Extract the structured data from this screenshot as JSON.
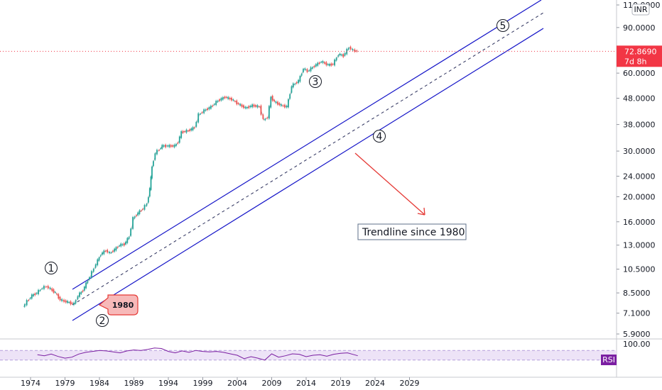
{
  "chart_data": {
    "type": "line",
    "currency": "INR",
    "x_ticks": [
      "1974",
      "1979",
      "1984",
      "1989",
      "1994",
      "1999",
      "2004",
      "2009",
      "2014",
      "2019",
      "2024",
      "2029"
    ],
    "y_scale": "log",
    "y_ticks": [
      "110.0000",
      "90.0000",
      "60.0000",
      "48.0000",
      "38.0000",
      "30.0000",
      "24.0000",
      "20.0000",
      "16.0000",
      "13.0000",
      "10.5000",
      "8.5000",
      "7.1000",
      "5.9000"
    ],
    "y_tick_values": [
      110,
      90,
      60,
      48,
      38,
      30,
      24,
      20,
      16,
      13,
      10.5,
      8.5,
      7.1,
      5.9
    ],
    "series": [
      {
        "values": [
          [
            1973.0,
            7.5
          ],
          [
            1973.6,
            7.9
          ],
          [
            1974.3,
            8.3
          ],
          [
            1975.0,
            8.5
          ],
          [
            1975.8,
            8.9
          ],
          [
            1976.4,
            9.0
          ],
          [
            1977.0,
            8.8
          ],
          [
            1977.7,
            8.5
          ],
          [
            1978.4,
            8.0
          ],
          [
            1979.0,
            7.9
          ],
          [
            1979.7,
            7.8
          ],
          [
            1980.4,
            7.7
          ],
          [
            1981.0,
            8.3
          ],
          [
            1981.7,
            8.7
          ],
          [
            1982.4,
            9.5
          ],
          [
            1983.0,
            10.2
          ],
          [
            1983.6,
            11.0
          ],
          [
            1984.3,
            12.0
          ],
          [
            1985.0,
            12.4
          ],
          [
            1985.6,
            12.1
          ],
          [
            1986.3,
            12.5
          ],
          [
            1987.0,
            13.0
          ],
          [
            1987.7,
            13.1
          ],
          [
            1988.4,
            14.0
          ],
          [
            1989.0,
            16.5
          ],
          [
            1989.7,
            17.3
          ],
          [
            1990.4,
            18.0
          ],
          [
            1991.0,
            18.8
          ],
          [
            1991.4,
            21.5
          ],
          [
            1991.7,
            26.0
          ],
          [
            1992.2,
            29.5
          ],
          [
            1992.8,
            30.5
          ],
          [
            1993.2,
            31.4
          ],
          [
            1994.0,
            31.4
          ],
          [
            1995.0,
            31.4
          ],
          [
            1995.5,
            32.5
          ],
          [
            1996.0,
            35.5
          ],
          [
            1997.0,
            36.0
          ],
          [
            1997.9,
            37.0
          ],
          [
            1998.5,
            41.5
          ],
          [
            1999.3,
            43.0
          ],
          [
            2000.3,
            44.5
          ],
          [
            2001.3,
            47.0
          ],
          [
            2002.3,
            48.5
          ],
          [
            2003.3,
            47.5
          ],
          [
            2004.3,
            45.5
          ],
          [
            2005.3,
            44.0
          ],
          [
            2006.3,
            45.0
          ],
          [
            2007.3,
            44.5
          ],
          [
            2007.9,
            39.5
          ],
          [
            2008.5,
            40.5
          ],
          [
            2009.0,
            48.5
          ],
          [
            2009.5,
            46.5
          ],
          [
            2010.5,
            45.0
          ],
          [
            2011.3,
            44.5
          ],
          [
            2012.0,
            53.5
          ],
          [
            2013.0,
            56.0
          ],
          [
            2013.7,
            62.5
          ],
          [
            2014.3,
            61.0
          ],
          [
            2015.3,
            64.0
          ],
          [
            2016.3,
            66.5
          ],
          [
            2017.3,
            64.5
          ],
          [
            2018.0,
            65.0
          ],
          [
            2018.8,
            71.0
          ],
          [
            2019.5,
            70.0
          ],
          [
            2020.3,
            75.5
          ],
          [
            2020.9,
            73.5
          ],
          [
            2021.5,
            72.87
          ]
        ]
      }
    ],
    "annotations": {
      "waves": [
        "1",
        "2",
        "3",
        "4",
        "5"
      ],
      "tag": "1980",
      "note": "Trendline since 1980"
    },
    "last_price": "72.8690",
    "countdown": "7d 8h",
    "rsi": {
      "label": "RSI",
      "y_max_label": "100.00",
      "values": [
        [
          1975.0,
          52
        ],
        [
          1976.0,
          48
        ],
        [
          1977.0,
          55
        ],
        [
          1978.0,
          45
        ],
        [
          1979.0,
          38
        ],
        [
          1980.0,
          42
        ],
        [
          1981.0,
          55
        ],
        [
          1982.0,
          62
        ],
        [
          1983.0,
          66
        ],
        [
          1984.0,
          70
        ],
        [
          1985.0,
          68
        ],
        [
          1986.0,
          64
        ],
        [
          1987.0,
          60
        ],
        [
          1988.0,
          68
        ],
        [
          1989.0,
          72
        ],
        [
          1990.0,
          70
        ],
        [
          1991.0,
          74
        ],
        [
          1992.0,
          80
        ],
        [
          1993.0,
          78
        ],
        [
          1994.0,
          66
        ],
        [
          1995.0,
          60
        ],
        [
          1996.0,
          68
        ],
        [
          1997.0,
          62
        ],
        [
          1998.0,
          70
        ],
        [
          1999.0,
          66
        ],
        [
          2000.0,
          64
        ],
        [
          2001.0,
          66
        ],
        [
          2002.0,
          62
        ],
        [
          2003.0,
          56
        ],
        [
          2004.0,
          50
        ],
        [
          2005.0,
          36
        ],
        [
          2006.0,
          44
        ],
        [
          2007.0,
          38
        ],
        [
          2008.0,
          30
        ],
        [
          2009.0,
          56
        ],
        [
          2010.0,
          42
        ],
        [
          2011.0,
          48
        ],
        [
          2012.0,
          56
        ],
        [
          2013.0,
          54
        ],
        [
          2014.0,
          44
        ],
        [
          2015.0,
          50
        ],
        [
          2016.0,
          52
        ],
        [
          2017.0,
          46
        ],
        [
          2018.0,
          54
        ],
        [
          2019.0,
          58
        ],
        [
          2020.0,
          60
        ],
        [
          2021.0,
          52
        ],
        [
          2021.5,
          48
        ]
      ]
    },
    "colors": {
      "channel": "#1515c8",
      "midline": "#2a2e5a",
      "arrow": "#e53935",
      "candle_up": "#26a69a",
      "candle_down": "#ef5350",
      "rsi_line": "#7b1fa2",
      "rsi_band": "#ede3f7",
      "price_tag": "#f23645",
      "tag_fill": "#f7b9b9",
      "tag_stroke": "#e53935"
    }
  }
}
